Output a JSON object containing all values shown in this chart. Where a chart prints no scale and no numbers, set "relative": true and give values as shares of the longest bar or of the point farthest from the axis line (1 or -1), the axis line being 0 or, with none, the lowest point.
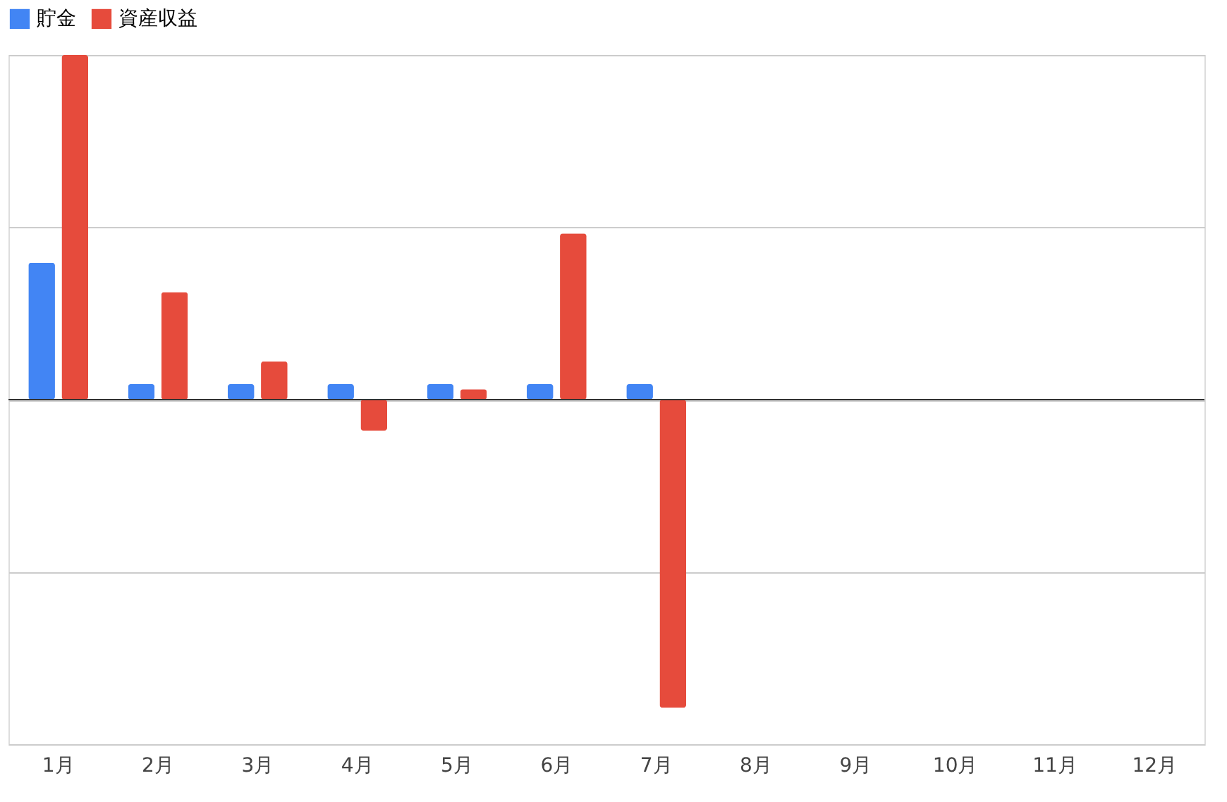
{
  "chart_data": {
    "type": "bar",
    "relative": true,
    "categories": [
      "1月",
      "2月",
      "3月",
      "4月",
      "5月",
      "6月",
      "7月",
      "8月",
      "9月",
      "10月",
      "11月",
      "12月"
    ],
    "series": [
      {
        "name": "貯金",
        "color": "#4285f4",
        "values": [
          0.397,
          0.045,
          0.045,
          0.045,
          0.045,
          0.045,
          0.045,
          null,
          null,
          null,
          null,
          null
        ]
      },
      {
        "name": "資産収益",
        "color": "#e64b3c",
        "values": [
          1.0,
          0.312,
          0.111,
          -0.09,
          0.03,
          0.482,
          -0.894,
          null,
          null,
          null,
          null,
          null
        ]
      }
    ],
    "grid": "y",
    "legend": "top",
    "tick_labels": "x"
  }
}
